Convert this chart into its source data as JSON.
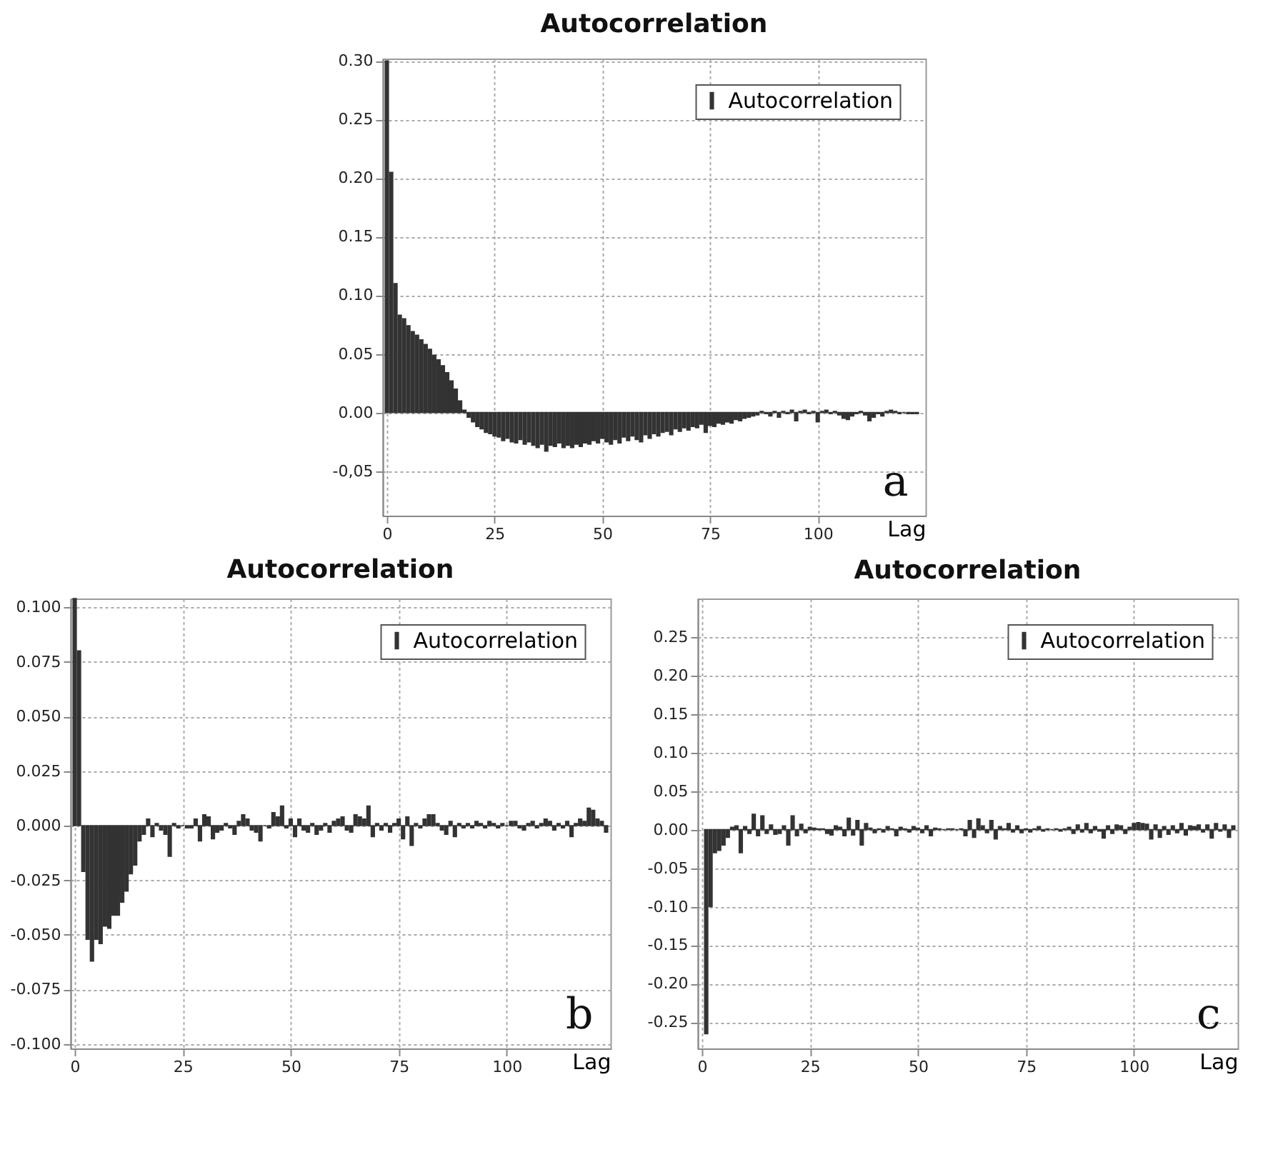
{
  "chart_data": [
    {
      "type": "bar",
      "title": "Autocorrelation",
      "xlabel": "Lag",
      "annotations": [
        "a"
      ],
      "legend": "top right",
      "grid": true,
      "xlim": [
        -1,
        125
      ],
      "xticks": [
        0,
        25,
        50,
        75,
        100
      ],
      "ylim": [
        -0.088,
        0.302
      ],
      "yticks": [
        {
          "value": -0.05,
          "label": "-0,05"
        },
        {
          "value": 0,
          "label": "0.00"
        },
        {
          "value": 0.05,
          "label": "0.05"
        },
        {
          "value": 0.1,
          "label": "0.10"
        },
        {
          "value": 0.15,
          "label": "0.15"
        },
        {
          "value": 0.2,
          "label": "0.20"
        },
        {
          "value": 0.25,
          "label": "0.25"
        },
        {
          "value": 0.3,
          "label": "0.30"
        }
      ],
      "x": [
        0,
        1,
        2,
        3,
        4,
        5,
        6,
        7,
        8,
        9,
        10,
        11,
        12,
        13,
        14,
        15,
        16,
        17,
        18,
        19,
        20,
        21,
        22,
        23,
        24,
        25,
        26,
        27,
        28,
        29,
        30,
        31,
        32,
        33,
        34,
        35,
        36,
        37,
        38,
        39,
        40,
        41,
        42,
        43,
        44,
        45,
        46,
        47,
        48,
        49,
        50,
        51,
        52,
        53,
        54,
        55,
        56,
        57,
        58,
        59,
        60,
        61,
        62,
        63,
        64,
        65,
        66,
        67,
        68,
        69,
        70,
        71,
        72,
        73,
        74,
        75,
        76,
        77,
        78,
        79,
        80,
        81,
        82,
        83,
        84,
        85,
        86,
        87,
        88,
        89,
        90,
        91,
        92,
        93,
        94,
        95,
        96,
        97,
        98,
        99,
        100,
        101,
        102,
        103,
        104,
        105,
        106,
        107,
        108,
        109,
        110,
        111,
        112,
        113,
        114,
        115,
        116,
        117,
        118,
        119,
        120,
        121,
        122,
        123
      ],
      "series": [
        {
          "name": "Autocorrelation",
          "color": "#333333",
          "values": [
            0.3,
            0.205,
            0.11,
            0.083,
            0.08,
            0.074,
            0.069,
            0.066,
            0.062,
            0.058,
            0.054,
            0.049,
            0.045,
            0.04,
            0.034,
            0.027,
            0.02,
            0.01,
            0.002,
            -0.004,
            -0.008,
            -0.012,
            -0.014,
            -0.017,
            -0.018,
            -0.02,
            -0.021,
            -0.024,
            -0.022,
            -0.025,
            -0.026,
            -0.023,
            -0.027,
            -0.025,
            -0.028,
            -0.03,
            -0.027,
            -0.033,
            -0.028,
            -0.029,
            -0.026,
            -0.03,
            -0.028,
            -0.03,
            -0.027,
            -0.029,
            -0.026,
            -0.027,
            -0.024,
            -0.026,
            -0.022,
            -0.025,
            -0.027,
            -0.023,
            -0.026,
            -0.021,
            -0.024,
            -0.02,
            -0.023,
            -0.025,
            -0.019,
            -0.022,
            -0.018,
            -0.02,
            -0.017,
            -0.016,
            -0.019,
            -0.014,
            -0.016,
            -0.013,
            -0.015,
            -0.012,
            -0.013,
            -0.01,
            -0.017,
            -0.011,
            -0.012,
            -0.009,
            -0.01,
            -0.008,
            -0.009,
            -0.006,
            -0.007,
            -0.005,
            -0.004,
            -0.003,
            -0.002,
            0.001,
            -0.001,
            -0.003,
            0.001,
            -0.004,
            0.001,
            -0.001,
            0.002,
            -0.007,
            0.001,
            0.002,
            -0.001,
            0.001,
            -0.008,
            0.001,
            0.002,
            -0.001,
            0.001,
            -0.002,
            -0.005,
            -0.006,
            -0.003,
            -0.001,
            0.001,
            -0.002,
            -0.007,
            -0.004,
            -0.001,
            -0.003,
            0.001,
            0.002,
            0.001,
            -0.001,
            0,
            -0.001,
            -0.001,
            -0.001
          ]
        }
      ]
    },
    {
      "type": "bar",
      "title": "Autocorrelation",
      "xlabel": "Lag",
      "annotations": [
        "b"
      ],
      "legend": "top right",
      "grid": true,
      "xlim": [
        -1,
        124
      ],
      "xticks": [
        0,
        25,
        50,
        75,
        100
      ],
      "ylim": [
        -0.102,
        0.104
      ],
      "yticks": [
        {
          "value": -0.1,
          "label": "-0.100"
        },
        {
          "value": -0.075,
          "label": "-0.075"
        },
        {
          "value": -0.05,
          "label": "-0.050"
        },
        {
          "value": -0.025,
          "label": "-0.025"
        },
        {
          "value": 0,
          "label": "0.000"
        },
        {
          "value": 0.025,
          "label": "0.025"
        },
        {
          "value": 0.05,
          "label": "0.050"
        },
        {
          "value": 0.075,
          "label": "0.075"
        },
        {
          "value": 0.1,
          "label": "0.100"
        }
      ],
      "x": [
        0,
        1,
        2,
        3,
        4,
        5,
        6,
        7,
        8,
        9,
        10,
        11,
        12,
        13,
        14,
        15,
        16,
        17,
        18,
        19,
        20,
        21,
        22,
        23,
        24,
        25,
        26,
        27,
        28,
        29,
        30,
        31,
        32,
        33,
        34,
        35,
        36,
        37,
        38,
        39,
        40,
        41,
        42,
        43,
        44,
        45,
        46,
        47,
        48,
        49,
        50,
        51,
        52,
        53,
        54,
        55,
        56,
        57,
        58,
        59,
        60,
        61,
        62,
        63,
        64,
        65,
        66,
        67,
        68,
        69,
        70,
        71,
        72,
        73,
        74,
        75,
        76,
        77,
        78,
        79,
        80,
        81,
        82,
        83,
        84,
        85,
        86,
        87,
        88,
        89,
        90,
        91,
        92,
        93,
        94,
        95,
        96,
        97,
        98,
        99,
        100,
        101,
        102,
        103,
        104,
        105,
        106,
        107,
        108,
        109,
        110,
        111,
        112,
        113,
        114,
        115,
        116,
        117,
        118,
        119,
        120,
        121,
        122,
        123
      ],
      "series": [
        {
          "name": "Autocorrelation",
          "color": "#333333",
          "values": [
            0.104,
            0.08,
            -0.021,
            -0.052,
            -0.062,
            -0.052,
            -0.054,
            -0.046,
            -0.047,
            -0.041,
            -0.041,
            -0.035,
            -0.03,
            -0.022,
            -0.018,
            -0.007,
            -0.004,
            0.003,
            -0.005,
            0.001,
            -0.002,
            -0.004,
            -0.014,
            0.001,
            -0.001,
            0,
            -0.001,
            -0.001,
            0.003,
            -0.007,
            0.005,
            0.004,
            -0.006,
            -0.003,
            -0.002,
            0.001,
            -0.001,
            -0.004,
            0.002,
            0.005,
            0.003,
            -0.002,
            -0.003,
            -0.007,
            0,
            -0.001,
            0.006,
            0.004,
            0.009,
            -0.001,
            0.003,
            -0.005,
            0.003,
            -0.002,
            -0.003,
            0.001,
            -0.004,
            -0.002,
            0.001,
            -0.003,
            0.002,
            0.003,
            0.004,
            -0.002,
            -0.003,
            0.005,
            0.004,
            0.003,
            0.009,
            -0.005,
            0.001,
            -0.002,
            0.001,
            -0.003,
            0.001,
            0.003,
            -0.006,
            0.004,
            -0.009,
            0.001,
            -0.001,
            0.003,
            0.005,
            0.005,
            0.001,
            -0.002,
            -0.004,
            0.002,
            -0.005,
            0.001,
            -0.001,
            0.001,
            -0.001,
            0.002,
            0.001,
            -0.001,
            0.002,
            0.001,
            -0.001,
            0.001,
            0,
            0.002,
            0.002,
            -0.001,
            -0.002,
            0.001,
            0.002,
            -0.001,
            0.001,
            0.003,
            0.002,
            -0.002,
            0.001,
            -0.001,
            0.002,
            -0.005,
            0.001,
            0.003,
            0.002,
            0.008,
            0.007,
            0.003,
            0.002,
            -0.003
          ]
        }
      ]
    },
    {
      "type": "bar",
      "title": "Autocorrelation",
      "xlabel": "Lag",
      "annotations": [
        "c"
      ],
      "legend": "top right",
      "grid": true,
      "xlim": [
        -1,
        124
      ],
      "xticks": [
        0,
        25,
        50,
        75,
        100
      ],
      "ylim": [
        -0.284,
        0.3
      ],
      "yticks": [
        {
          "value": -0.25,
          "label": "-0.25"
        },
        {
          "value": -0.2,
          "label": "-0.20"
        },
        {
          "value": -0.15,
          "label": "-0.15"
        },
        {
          "value": -0.1,
          "label": "-0.10"
        },
        {
          "value": -0.05,
          "label": "-0.05"
        },
        {
          "value": 0,
          "label": "0.00"
        },
        {
          "value": 0.05,
          "label": "0.05"
        },
        {
          "value": 0.1,
          "label": "0.10"
        },
        {
          "value": 0.15,
          "label": "0.15"
        },
        {
          "value": 0.2,
          "label": "0.20"
        },
        {
          "value": 0.25,
          "label": "0.25"
        }
      ],
      "x": [
        1,
        2,
        3,
        4,
        5,
        6,
        7,
        8,
        9,
        10,
        11,
        12,
        13,
        14,
        15,
        16,
        17,
        18,
        19,
        20,
        21,
        22,
        23,
        24,
        25,
        26,
        27,
        28,
        29,
        30,
        31,
        32,
        33,
        34,
        35,
        36,
        37,
        38,
        39,
        40,
        41,
        42,
        43,
        44,
        45,
        46,
        47,
        48,
        49,
        50,
        51,
        52,
        53,
        54,
        55,
        56,
        57,
        58,
        59,
        60,
        61,
        62,
        63,
        64,
        65,
        66,
        67,
        68,
        69,
        70,
        71,
        72,
        73,
        74,
        75,
        76,
        77,
        78,
        79,
        80,
        81,
        82,
        83,
        84,
        85,
        86,
        87,
        88,
        89,
        90,
        91,
        92,
        93,
        94,
        95,
        96,
        97,
        98,
        99,
        100,
        101,
        102,
        103,
        104,
        105,
        106,
        107,
        108,
        109,
        110,
        111,
        112,
        113,
        114,
        115,
        116,
        117,
        118,
        119,
        120,
        121,
        122,
        123
      ],
      "series": [
        {
          "name": "Autocorrelation",
          "color": "#333333",
          "values": [
            -0.265,
            -0.1,
            -0.03,
            -0.027,
            -0.02,
            -0.01,
            0.003,
            0.005,
            -0.03,
            0.004,
            -0.005,
            0.02,
            -0.008,
            0.018,
            -0.005,
            0.006,
            -0.006,
            -0.005,
            0.005,
            -0.02,
            0.018,
            -0.008,
            0.007,
            -0.004,
            0.003,
            0.002,
            0.001,
            0.001,
            -0.005,
            -0.007,
            0.005,
            0.003,
            -0.008,
            0.015,
            -0.007,
            0.012,
            -0.02,
            0.008,
            0.002,
            -0.004,
            0.001,
            -0.003,
            0.004,
            0.001,
            -0.008,
            0.003,
            0.001,
            -0.003,
            0.004,
            0.002,
            -0.004,
            0.005,
            -0.008,
            0.002,
            0.001,
            0,
            0.001,
            0.001,
            0,
            0.001,
            -0.008,
            0.012,
            -0.01,
            0.014,
            0.005,
            -0.004,
            0.012,
            -0.012,
            0.004,
            0.001,
            0.008,
            -0.003,
            0.005,
            -0.004,
            0.001,
            -0.003,
            0.001,
            0.004,
            -0.002,
            0.001,
            0,
            0.001,
            -0.002,
            0.001,
            0.003,
            -0.005,
            0.006,
            -0.003,
            0.008,
            -0.004,
            0.004,
            -0.002,
            -0.011,
            0.005,
            -0.005,
            0.006,
            0.005,
            -0.005,
            0.003,
            0.008,
            0.009,
            0.008,
            0.007,
            -0.012,
            0.006,
            -0.01,
            0.004,
            -0.006,
            0.005,
            -0.004,
            0.008,
            -0.007,
            0.005,
            0.004,
            0.006,
            -0.003,
            0.006,
            -0.011,
            0.008,
            -0.002,
            0.006,
            -0.01,
            0.005
          ]
        }
      ]
    }
  ]
}
